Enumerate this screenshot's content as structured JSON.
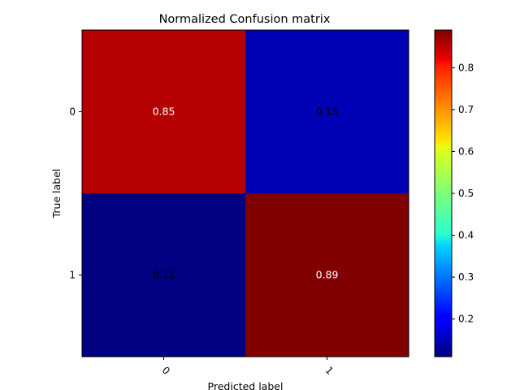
{
  "chart_data": {
    "type": "heatmap",
    "title": "Normalized Confusion matrix",
    "xlabel": "Predicted label",
    "ylabel": "True label",
    "x_categories": [
      "0",
      "1"
    ],
    "y_categories": [
      "0",
      "1"
    ],
    "values": [
      [
        0.85,
        0.15
      ],
      [
        0.11,
        0.89
      ]
    ],
    "cell_labels": [
      [
        "0.85",
        "0.15"
      ],
      [
        "0.11",
        "0.89"
      ]
    ],
    "colormap": "jet",
    "colorbar": {
      "min": 0.11,
      "max": 0.89,
      "ticks": [
        0.2,
        0.3,
        0.4,
        0.5,
        0.6,
        0.7,
        0.8
      ],
      "tick_labels": [
        "0.2",
        "0.3",
        "0.4",
        "0.5",
        "0.6",
        "0.7",
        "0.8"
      ]
    },
    "grid": false
  }
}
